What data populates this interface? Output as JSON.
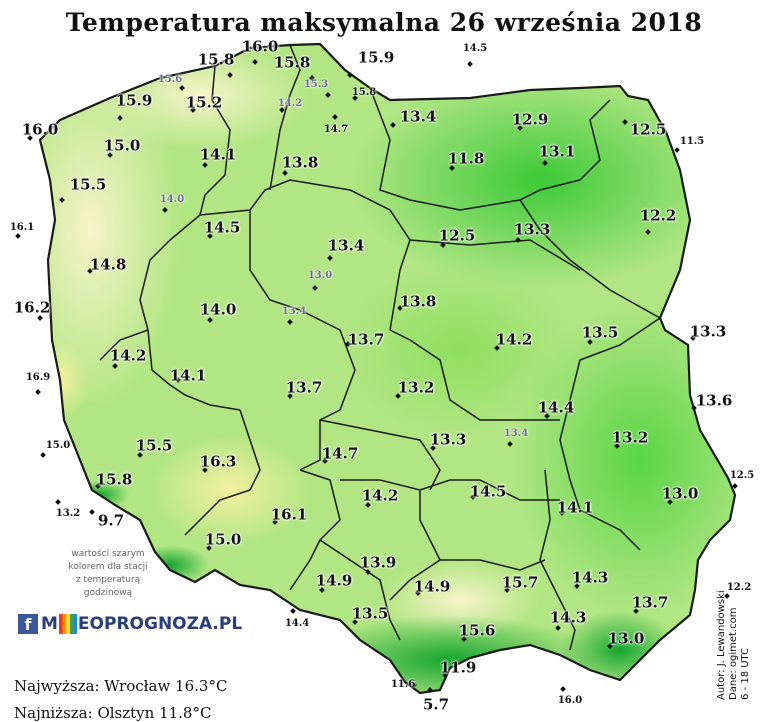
{
  "title": "Temperatura maksymalna 26 września 2018",
  "colors": {
    "sea": "#ffffff",
    "warm": "#f6f3c8",
    "light_green": "#b9e98a",
    "mid_green": "#7fdc55",
    "dark_green": "#3fc93a",
    "mountain": "#1fae33",
    "border": "#1a1a1a"
  },
  "legend_note": [
    "wartości szarym",
    "kolorem dla stacji",
    "z temperaturą",
    "godzinową"
  ],
  "logo": {
    "icon": "facebook-icon",
    "text": "METEOPROGNOZA.PL",
    "prefix": "M",
    "suffix": "EOPROGNOZA.PL"
  },
  "extremes": {
    "max": "Najwyższa: Wrocław 16.3°C",
    "min": "Najniższa: Olsztyn 11.8°C"
  },
  "credits": [
    "Autor: J. Lewandowski",
    "Dane: ogimet.com",
    "6 - 18 UTC"
  ],
  "stations": [
    {
      "v": "16.0",
      "s": "big"
    },
    {
      "v": "15.8",
      "s": "big"
    },
    {
      "v": "15.8",
      "s": "big"
    },
    {
      "v": "15.9",
      "s": "big"
    },
    {
      "v": "14.5",
      "s": "small"
    },
    {
      "v": "15.6",
      "s": "grey"
    },
    {
      "v": "15.3",
      "s": "grey"
    },
    {
      "v": "15.8",
      "s": "small"
    },
    {
      "v": "15.9",
      "s": "big"
    },
    {
      "v": "15.2",
      "s": "big"
    },
    {
      "v": "14.2",
      "s": "grey"
    },
    {
      "v": "14.7",
      "s": "small"
    },
    {
      "v": "13.4",
      "s": "big"
    },
    {
      "v": "12.9",
      "s": "big"
    },
    {
      "v": "12.5",
      "s": "big"
    },
    {
      "v": "11.5",
      "s": "small"
    },
    {
      "v": "16.0",
      "s": "big"
    },
    {
      "v": "15.0",
      "s": "big"
    },
    {
      "v": "14.1",
      "s": "big"
    },
    {
      "v": "13.8",
      "s": "big"
    },
    {
      "v": "11.8",
      "s": "big"
    },
    {
      "v": "13.1",
      "s": "big"
    },
    {
      "v": "15.5",
      "s": "big"
    },
    {
      "v": "14.0",
      "s": "grey"
    },
    {
      "v": "12.2",
      "s": "big"
    },
    {
      "v": "16.1",
      "s": "small"
    },
    {
      "v": "14.5",
      "s": "big"
    },
    {
      "v": "13.4",
      "s": "big"
    },
    {
      "v": "12.5",
      "s": "big"
    },
    {
      "v": "13.3",
      "s": "big"
    },
    {
      "v": "14.8",
      "s": "big"
    },
    {
      "v": "13.0",
      "s": "grey"
    },
    {
      "v": "16.2",
      "s": "big"
    },
    {
      "v": "14.0",
      "s": "big"
    },
    {
      "v": "13.4",
      "s": "grey"
    },
    {
      "v": "13.8",
      "s": "big"
    },
    {
      "v": "13.7",
      "s": "big"
    },
    {
      "v": "14.2",
      "s": "big"
    },
    {
      "v": "13.5",
      "s": "big"
    },
    {
      "v": "13.3",
      "s": "big"
    },
    {
      "v": "14.2",
      "s": "big"
    },
    {
      "v": "16.9",
      "s": "small"
    },
    {
      "v": "14.1",
      "s": "big"
    },
    {
      "v": "13.7",
      "s": "big"
    },
    {
      "v": "13.2",
      "s": "big"
    },
    {
      "v": "13.6",
      "s": "big"
    },
    {
      "v": "14.4",
      "s": "big"
    },
    {
      "v": "15.0",
      "s": "small"
    },
    {
      "v": "15.5",
      "s": "big"
    },
    {
      "v": "13.3",
      "s": "big"
    },
    {
      "v": "13.4",
      "s": "grey"
    },
    {
      "v": "13.2",
      "s": "big"
    },
    {
      "v": "16.3",
      "s": "big"
    },
    {
      "v": "14.7",
      "s": "big"
    },
    {
      "v": "15.8",
      "s": "big"
    },
    {
      "v": "12.5",
      "s": "small"
    },
    {
      "v": "14.5",
      "s": "big"
    },
    {
      "v": "13.0",
      "s": "big"
    },
    {
      "v": "14.2",
      "s": "big"
    },
    {
      "v": "13.2",
      "s": "small"
    },
    {
      "v": "9.7",
      "s": "big"
    },
    {
      "v": "16.1",
      "s": "big"
    },
    {
      "v": "14.1",
      "s": "big"
    },
    {
      "v": "15.0",
      "s": "big"
    },
    {
      "v": "13.9",
      "s": "big"
    },
    {
      "v": "14.9",
      "s": "big"
    },
    {
      "v": "14.9",
      "s": "big"
    },
    {
      "v": "15.7",
      "s": "big"
    },
    {
      "v": "14.3",
      "s": "big"
    },
    {
      "v": "12.2",
      "s": "small"
    },
    {
      "v": "13.7",
      "s": "big"
    },
    {
      "v": "14.4",
      "s": "small"
    },
    {
      "v": "13.5",
      "s": "big"
    },
    {
      "v": "15.6",
      "s": "big"
    },
    {
      "v": "14.3",
      "s": "big"
    },
    {
      "v": "13.0",
      "s": "big"
    },
    {
      "v": "11.9",
      "s": "big"
    },
    {
      "v": "11.6",
      "s": "small"
    },
    {
      "v": "5.7",
      "s": "big"
    },
    {
      "v": "16.0",
      "s": "small"
    }
  ]
}
